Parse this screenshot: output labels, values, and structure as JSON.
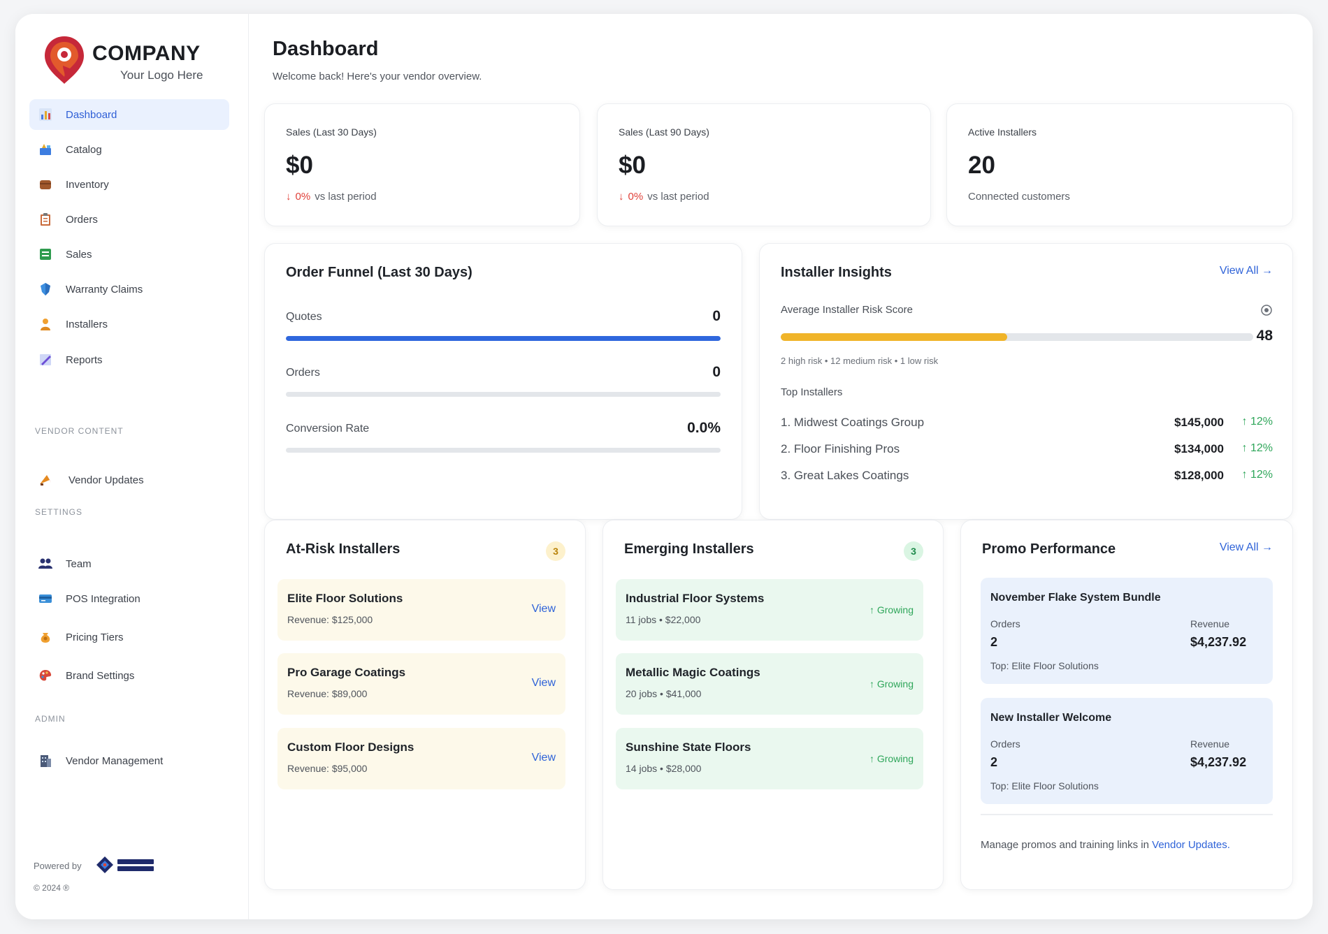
{
  "brand": {
    "name": "COMPANY",
    "tagline": "Your Logo Here"
  },
  "sidebar": {
    "items": [
      {
        "label": "Dashboard",
        "icon": "bar-chart-icon"
      },
      {
        "label": "Catalog",
        "icon": "catalog-icon"
      },
      {
        "label": "Inventory",
        "icon": "box-icon"
      },
      {
        "label": "Orders",
        "icon": "clipboard-icon"
      },
      {
        "label": "Sales",
        "icon": "ledger-icon"
      },
      {
        "label": "Warranty Claims",
        "icon": "shield-icon"
      },
      {
        "label": "Installers",
        "icon": "person-icon"
      },
      {
        "label": "Reports",
        "icon": "pencil-chart-icon"
      }
    ],
    "sections": {
      "vendor_content": "VENDOR CONTENT",
      "settings": "SETTINGS",
      "admin": "ADMIN"
    },
    "vendor_items": [
      {
        "label": "Vendor Updates",
        "icon": "megaphone-icon"
      }
    ],
    "settings_items": [
      {
        "label": "Team",
        "icon": "team-icon"
      },
      {
        "label": "POS Integration",
        "icon": "card-icon"
      },
      {
        "label": "Pricing Tiers",
        "icon": "money-bag-icon"
      },
      {
        "label": "Brand Settings",
        "icon": "palette-icon"
      }
    ],
    "admin_items": [
      {
        "label": "Vendor Management",
        "icon": "building-icon"
      }
    ],
    "powered_by": "Powered by",
    "copyright": "© 2024 ®"
  },
  "header": {
    "title": "Dashboard",
    "subtitle": "Welcome back! Here's your vendor overview."
  },
  "stats": [
    {
      "label": "Sales (Last 30 Days)",
      "value": "$0",
      "change": "0%",
      "change_suffix": "vs last period"
    },
    {
      "label": "Sales (Last 90 Days)",
      "value": "$0",
      "change": "0%",
      "change_suffix": "vs last period"
    },
    {
      "label": "Active Installers",
      "value": "20",
      "foot": "Connected customers"
    }
  ],
  "funnel": {
    "title": "Order Funnel (Last 30 Days)",
    "rows": [
      {
        "label": "Quotes",
        "value": "0",
        "fill": 1.0
      },
      {
        "label": "Orders",
        "value": "0",
        "fill": 0
      },
      {
        "label": "Conversion Rate",
        "value": "0.0%",
        "fill": 0
      }
    ]
  },
  "insights": {
    "title": "Installer Insights",
    "view_all": "View All →",
    "risk_label": "Average Installer Risk Score",
    "risk_value": "48",
    "risk_fill": 0.48,
    "risk_note": "2 high risk • 12 medium risk • 1 low risk",
    "top_label": "Top Installers",
    "top": [
      {
        "name": "1. Midwest Coatings Group",
        "amount": "$145,000",
        "change": "↑ 12%"
      },
      {
        "name": "2. Floor Finishing Pros",
        "amount": "$134,000",
        "change": "↑ 12%"
      },
      {
        "name": "3. Great Lakes Coatings",
        "amount": "$128,000",
        "change": "↑ 12%"
      }
    ]
  },
  "at_risk": {
    "title": "At-Risk Installers",
    "count": "3",
    "items": [
      {
        "name": "Elite Floor Solutions",
        "sub": "Revenue: $125,000",
        "action": "View"
      },
      {
        "name": "Pro Garage Coatings",
        "sub": "Revenue: $89,000",
        "action": "View"
      },
      {
        "name": "Custom Floor Designs",
        "sub": "Revenue: $95,000",
        "action": "View"
      }
    ]
  },
  "emerging": {
    "title": "Emerging Installers",
    "count": "3",
    "items": [
      {
        "name": "Industrial Floor Systems",
        "sub": "11 jobs • $22,000",
        "status": "↑ Growing"
      },
      {
        "name": "Metallic Magic Coatings",
        "sub": "20 jobs • $41,000",
        "status": "↑ Growing"
      },
      {
        "name": "Sunshine State Floors",
        "sub": "14 jobs • $28,000",
        "status": "↑ Growing"
      }
    ]
  },
  "promo": {
    "title": "Promo Performance",
    "view_all": "View All →",
    "items": [
      {
        "name": "November Flake System Bundle",
        "orders_label": "Orders",
        "orders": "2",
        "revenue_label": "Revenue",
        "revenue": "$4,237.92",
        "top": "Top: Elite Floor Solutions"
      },
      {
        "name": "New Installer Welcome",
        "orders_label": "Orders",
        "orders": "2",
        "revenue_label": "Revenue",
        "revenue": "$4,237.92",
        "top": "Top: Elite Floor Solutions"
      }
    ],
    "foot_text": "Manage promos and training links in ",
    "foot_link": "Vendor Updates."
  },
  "colors": {
    "accent": "#2f63d8",
    "active_bg": "#eaf1fe",
    "risk": "#f0b429",
    "down": "#e0413a",
    "up": "#2fa65a",
    "brand_red": "#c62839"
  }
}
